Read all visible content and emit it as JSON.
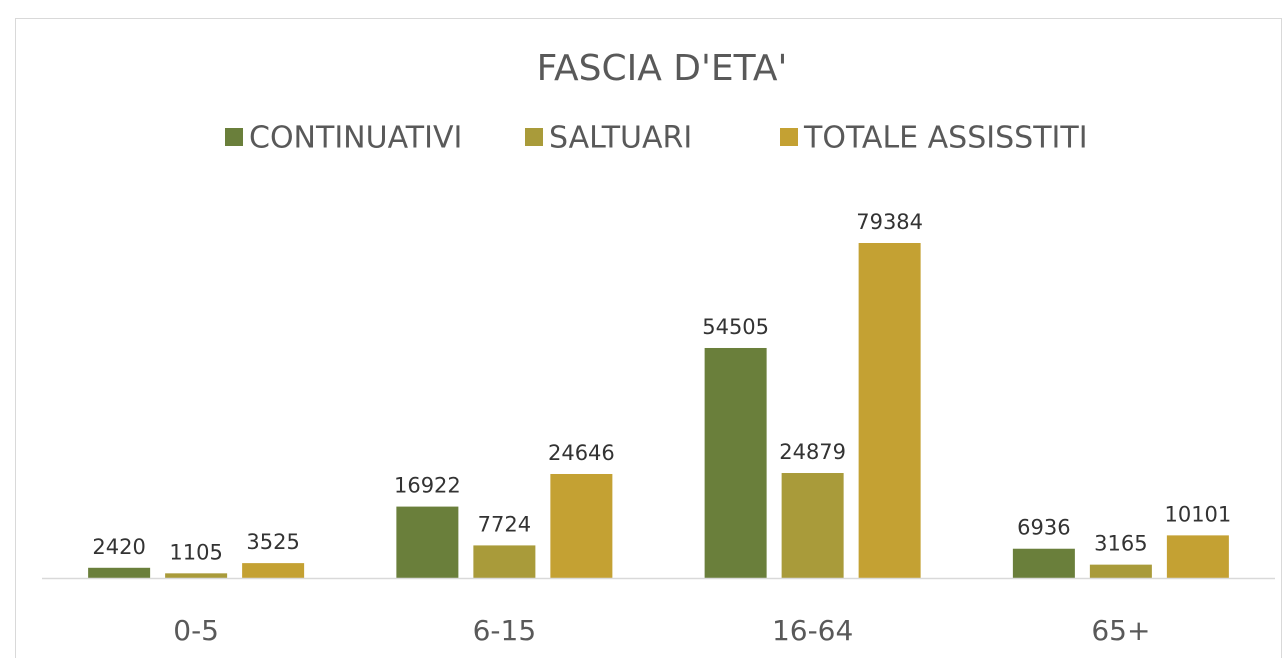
{
  "chart_data": {
    "type": "bar",
    "title": "FASCIA D'ETA'",
    "categories": [
      "0-5",
      "6-15",
      "16-64",
      "65+"
    ],
    "series": [
      {
        "name": "CONTINUATIVI",
        "color": "#6a7f3b",
        "values": [
          2420,
          16922,
          54505,
          6936
        ]
      },
      {
        "name": "SALTUARI",
        "color": "#a99b3a",
        "values": [
          1105,
          7724,
          24879,
          3165
        ]
      },
      {
        "name": "TOTALE ASSISSTITI",
        "color": "#c4a133",
        "values": [
          3525,
          24646,
          79384,
          10101
        ]
      }
    ],
    "legend": "top"
  }
}
